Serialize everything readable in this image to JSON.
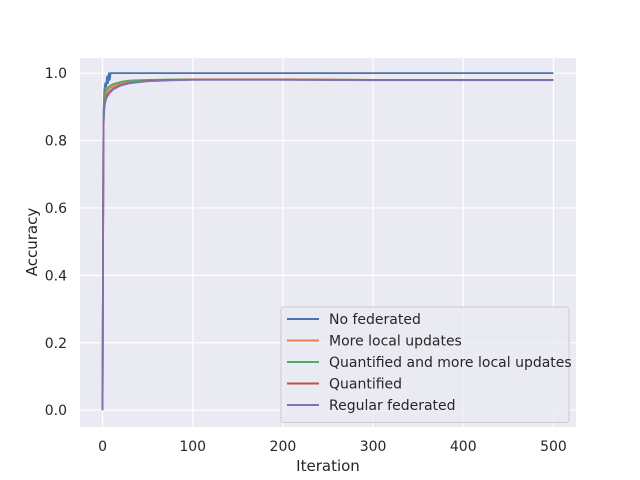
{
  "chart_data": {
    "type": "line",
    "title": "",
    "xlabel": "Iteration",
    "ylabel": "Accuracy",
    "xlim": [
      -25,
      525
    ],
    "ylim": [
      -0.05,
      1.045
    ],
    "xticks": [
      0,
      100,
      200,
      300,
      400,
      500
    ],
    "yticks": [
      0.0,
      0.2,
      0.4,
      0.6,
      0.8,
      1.0
    ],
    "xtick_labels": [
      "0",
      "100",
      "200",
      "300",
      "400",
      "500"
    ],
    "ytick_labels": [
      "0.0",
      "0.2",
      "0.4",
      "0.6",
      "0.8",
      "1.0"
    ],
    "grid": true,
    "background": "#eaeaf2",
    "legend_position": "lower-right",
    "series": [
      {
        "name": "No federated",
        "color": "#4c72b0",
        "x": [
          0,
          1,
          2,
          3,
          4,
          5,
          6,
          7,
          8,
          9,
          10,
          500
        ],
        "y": [
          0.0,
          0.88,
          0.95,
          0.97,
          0.96,
          0.99,
          0.97,
          1.0,
          0.98,
          1.0,
          1.0,
          1.0
        ]
      },
      {
        "name": "More local updates",
        "color": "#dd8452",
        "x": [
          0,
          1,
          2,
          3,
          5,
          8,
          12,
          20,
          30,
          50,
          80,
          100,
          200,
          300,
          400,
          500
        ],
        "y": [
          0.0,
          0.86,
          0.91,
          0.93,
          0.945,
          0.955,
          0.962,
          0.97,
          0.975,
          0.979,
          0.981,
          0.981,
          0.981,
          0.98,
          0.98,
          0.98
        ]
      },
      {
        "name": "Quantified and more local updates",
        "color": "#55a868",
        "x": [
          0,
          1,
          2,
          3,
          5,
          8,
          12,
          20,
          30,
          50,
          80,
          100,
          200,
          300,
          400,
          500
        ],
        "y": [
          0.0,
          0.88,
          0.93,
          0.945,
          0.955,
          0.962,
          0.968,
          0.974,
          0.978,
          0.98,
          0.981,
          0.981,
          0.981,
          0.98,
          0.98,
          0.98
        ]
      },
      {
        "name": "Quantified",
        "color": "#c44e52",
        "x": [
          0,
          1,
          2,
          3,
          5,
          8,
          12,
          20,
          30,
          50,
          80,
          100,
          200,
          300,
          400,
          500
        ],
        "y": [
          0.0,
          0.85,
          0.9,
          0.92,
          0.935,
          0.945,
          0.955,
          0.965,
          0.971,
          0.977,
          0.98,
          0.981,
          0.981,
          0.98,
          0.98,
          0.98
        ]
      },
      {
        "name": "Regular federated",
        "color": "#8172b3",
        "x": [
          0,
          1,
          2,
          3,
          5,
          8,
          12,
          20,
          30,
          50,
          80,
          100,
          200,
          300,
          400,
          500
        ],
        "y": [
          0.0,
          0.84,
          0.895,
          0.915,
          0.93,
          0.942,
          0.952,
          0.963,
          0.97,
          0.976,
          0.979,
          0.98,
          0.98,
          0.979,
          0.979,
          0.979
        ]
      }
    ]
  }
}
